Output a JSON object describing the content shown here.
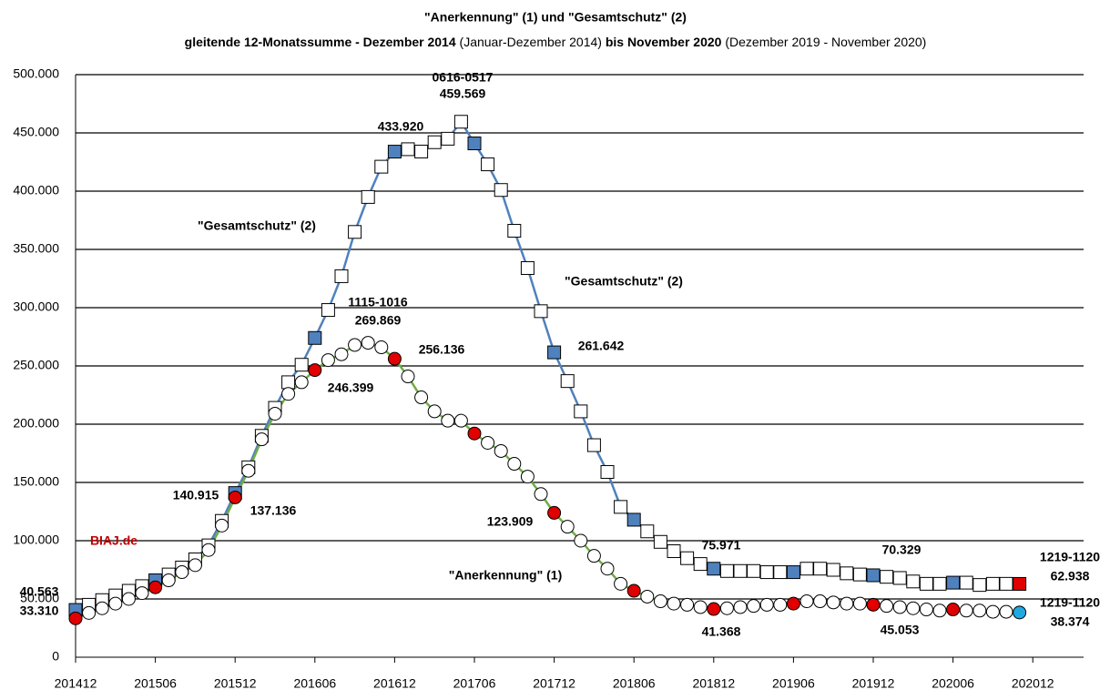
{
  "chart_data": {
    "type": "line",
    "title": "\"Anerkennung\" (1) und \"Gesamtschutz\" (2)",
    "subtitle": [
      "gleitende 12-Monatssumme - Dezember 2014 ",
      "(Januar-Dezember 2014)",
      " bis November 2020 ",
      "(Dezember 2019 - November 2020)"
    ],
    "categories": [
      "201412",
      null,
      null,
      null,
      null,
      null,
      "201506",
      null,
      null,
      null,
      null,
      null,
      "201512",
      null,
      null,
      null,
      null,
      null,
      "201606",
      null,
      null,
      null,
      null,
      null,
      "201612",
      null,
      null,
      null,
      null,
      null,
      "201706",
      null,
      null,
      null,
      null,
      null,
      "201712",
      null,
      null,
      null,
      null,
      null,
      "201806",
      null,
      null,
      null,
      null,
      null,
      "201812",
      null,
      null,
      null,
      null,
      null,
      "201906",
      null,
      null,
      null,
      null,
      null,
      "201912",
      null,
      null,
      null,
      null,
      null,
      "202006",
      null,
      null,
      null,
      null,
      null,
      "202012"
    ],
    "ylim": [
      0,
      500000
    ],
    "yticks": [
      0,
      {
        "value": 50000,
        "label": "50.000"
      },
      {
        "value": 100000,
        "label": "100.000"
      },
      {
        "value": 150000,
        "label": "150.000"
      },
      {
        "value": 200000,
        "label": "200.000"
      },
      {
        "value": 250000,
        "label": "250.000"
      },
      {
        "value": 300000,
        "label": "300.000"
      },
      {
        "value": 350000,
        "label": "350.000"
      },
      {
        "value": 400000,
        "label": "400.000"
      },
      {
        "value": 450000,
        "label": "450.000"
      },
      {
        "value": 500000,
        "label": "500.000"
      }
    ],
    "grid": true,
    "series": [
      {
        "name": "\"Gesamtschutz\" (2)",
        "color": "#4f81bd",
        "marker": "square",
        "highlight_color": "#4f81bd",
        "last_color": "#e00000",
        "values": [
          40563,
          45000,
          49000,
          53000,
          57000,
          61000,
          66000,
          71000,
          77000,
          84000,
          96000,
          117000,
          140915,
          163000,
          190000,
          214000,
          236000,
          251000,
          274000,
          298000,
          327000,
          365000,
          395000,
          421000,
          433920,
          436000,
          434000,
          442000,
          445000,
          459569,
          441000,
          423000,
          401000,
          366000,
          334000,
          297000,
          261642,
          237000,
          211000,
          182000,
          159000,
          129000,
          118000,
          108000,
          99000,
          91000,
          85000,
          80000,
          75971,
          74000,
          74000,
          74000,
          73000,
          73000,
          73000,
          76000,
          76000,
          75000,
          72000,
          71000,
          70329,
          69000,
          68000,
          65000,
          63000,
          63000,
          64000,
          64000,
          62000,
          63000,
          63000,
          62938,
          null
        ],
        "value_labels": [
          "40.563",
          null,
          null,
          null,
          null,
          null,
          null,
          null,
          null,
          null,
          null,
          null,
          "140.915",
          null,
          null,
          null,
          null,
          null,
          null,
          null,
          null,
          null,
          null,
          null,
          "433.920",
          null,
          null,
          null,
          null,
          "459.569",
          null,
          null,
          null,
          null,
          null,
          null,
          "261.642",
          null,
          null,
          null,
          null,
          null,
          null,
          null,
          null,
          null,
          null,
          null,
          "75.971",
          null,
          null,
          null,
          null,
          null,
          null,
          null,
          null,
          null,
          null,
          null,
          "70.329",
          null,
          null,
          null,
          null,
          null,
          null,
          null,
          null,
          null,
          null,
          "62.938",
          null
        ]
      },
      {
        "name": "\"Anerkennung\" (1)",
        "color": "#70ad47",
        "marker": "circle",
        "highlight_color": "#e00000",
        "last_color": "#1fa9e1",
        "values": [
          33310,
          38000,
          42000,
          46000,
          50000,
          55000,
          60000,
          66000,
          73000,
          79000,
          92000,
          113000,
          137136,
          160000,
          187000,
          209000,
          226000,
          236000,
          246399,
          255000,
          260000,
          268000,
          269869,
          266000,
          256136,
          241000,
          223000,
          211000,
          203000,
          203000,
          192000,
          184000,
          177000,
          166000,
          155000,
          140000,
          123909,
          112000,
          100000,
          87000,
          76000,
          63000,
          57000,
          52000,
          48000,
          46000,
          45000,
          43000,
          41368,
          42000,
          43000,
          44000,
          45000,
          45000,
          46000,
          48000,
          48000,
          47000,
          46000,
          46000,
          45053,
          44000,
          43000,
          42000,
          41000,
          40000,
          41000,
          40000,
          40000,
          39000,
          39000,
          38374,
          null
        ],
        "value_labels": [
          "33.310",
          null,
          null,
          null,
          null,
          null,
          null,
          null,
          null,
          null,
          null,
          null,
          "137.136",
          null,
          null,
          null,
          null,
          null,
          "246.399",
          null,
          null,
          null,
          "269.869",
          null,
          "256.136",
          null,
          null,
          null,
          null,
          null,
          null,
          null,
          null,
          null,
          null,
          null,
          "123.909",
          null,
          null,
          null,
          null,
          null,
          null,
          null,
          null,
          null,
          null,
          null,
          "41.368",
          null,
          null,
          null,
          null,
          null,
          null,
          null,
          null,
          null,
          null,
          null,
          "45.053",
          null,
          null,
          null,
          null,
          null,
          null,
          null,
          null,
          null,
          null,
          "38.374",
          null
        ]
      }
    ],
    "annotations": [
      "0616-0517",
      "1115-1016",
      "1219-1120",
      "1219-1120",
      "\"Gesamtschutz\" (2)",
      "\"Gesamtschutz\" (2)",
      "\"Anerkennung\" (1)",
      "BIAJ.de"
    ]
  }
}
